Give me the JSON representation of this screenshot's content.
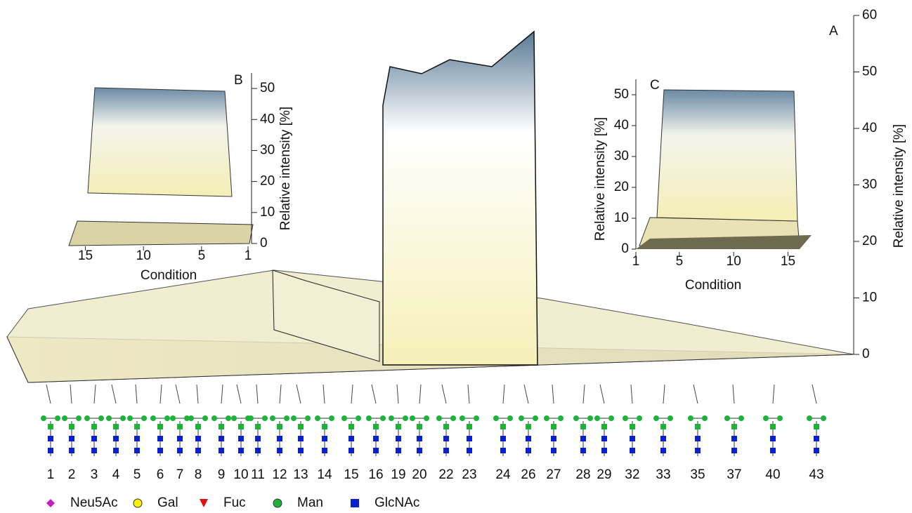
{
  "chart_data": [
    {
      "type": "surface",
      "label": "A",
      "ylabel": "Relative intensity [%]",
      "categories": [
        "1",
        "2",
        "3",
        "4",
        "5",
        "6",
        "7",
        "8",
        "9",
        "10",
        "11",
        "12",
        "13",
        "14",
        "15",
        "16",
        "19",
        "20",
        "22",
        "23",
        "24",
        "26",
        "27",
        "28",
        "29",
        "32",
        "33",
        "35",
        "37",
        "40",
        "43"
      ],
      "ylim": [
        0,
        60
      ],
      "yticks": [
        0,
        10,
        20,
        30,
        40,
        50,
        60
      ]
    },
    {
      "type": "surface",
      "label": "B",
      "xlabel": "Condition",
      "ylabel": "Relative intensity [%]",
      "xlim": [
        16,
        1
      ],
      "xticks": [
        15,
        10,
        5,
        1
      ],
      "ylim": [
        0,
        55
      ],
      "yticks": [
        0,
        10,
        20,
        30,
        40,
        50
      ]
    },
    {
      "type": "surface",
      "label": "C",
      "xlabel": "Condition",
      "ylabel": "Relative intensity [%]",
      "xlim": [
        1,
        16
      ],
      "xticks": [
        1,
        5,
        10,
        15
      ],
      "ylim": [
        0,
        55
      ],
      "yticks": [
        0,
        10,
        20,
        30,
        40,
        50
      ]
    }
  ],
  "legend": [
    {
      "name": "Neu5Ac",
      "shape": "diamond",
      "color": "#c21fc2"
    },
    {
      "name": "Gal",
      "shape": "circle",
      "color": "#ffee00"
    },
    {
      "name": "Fuc",
      "shape": "triangle",
      "color": "#e01010"
    },
    {
      "name": "Man",
      "shape": "circle",
      "color": "#1db33a"
    },
    {
      "name": "GlcNAc",
      "shape": "square",
      "color": "#0a1fcf"
    }
  ]
}
